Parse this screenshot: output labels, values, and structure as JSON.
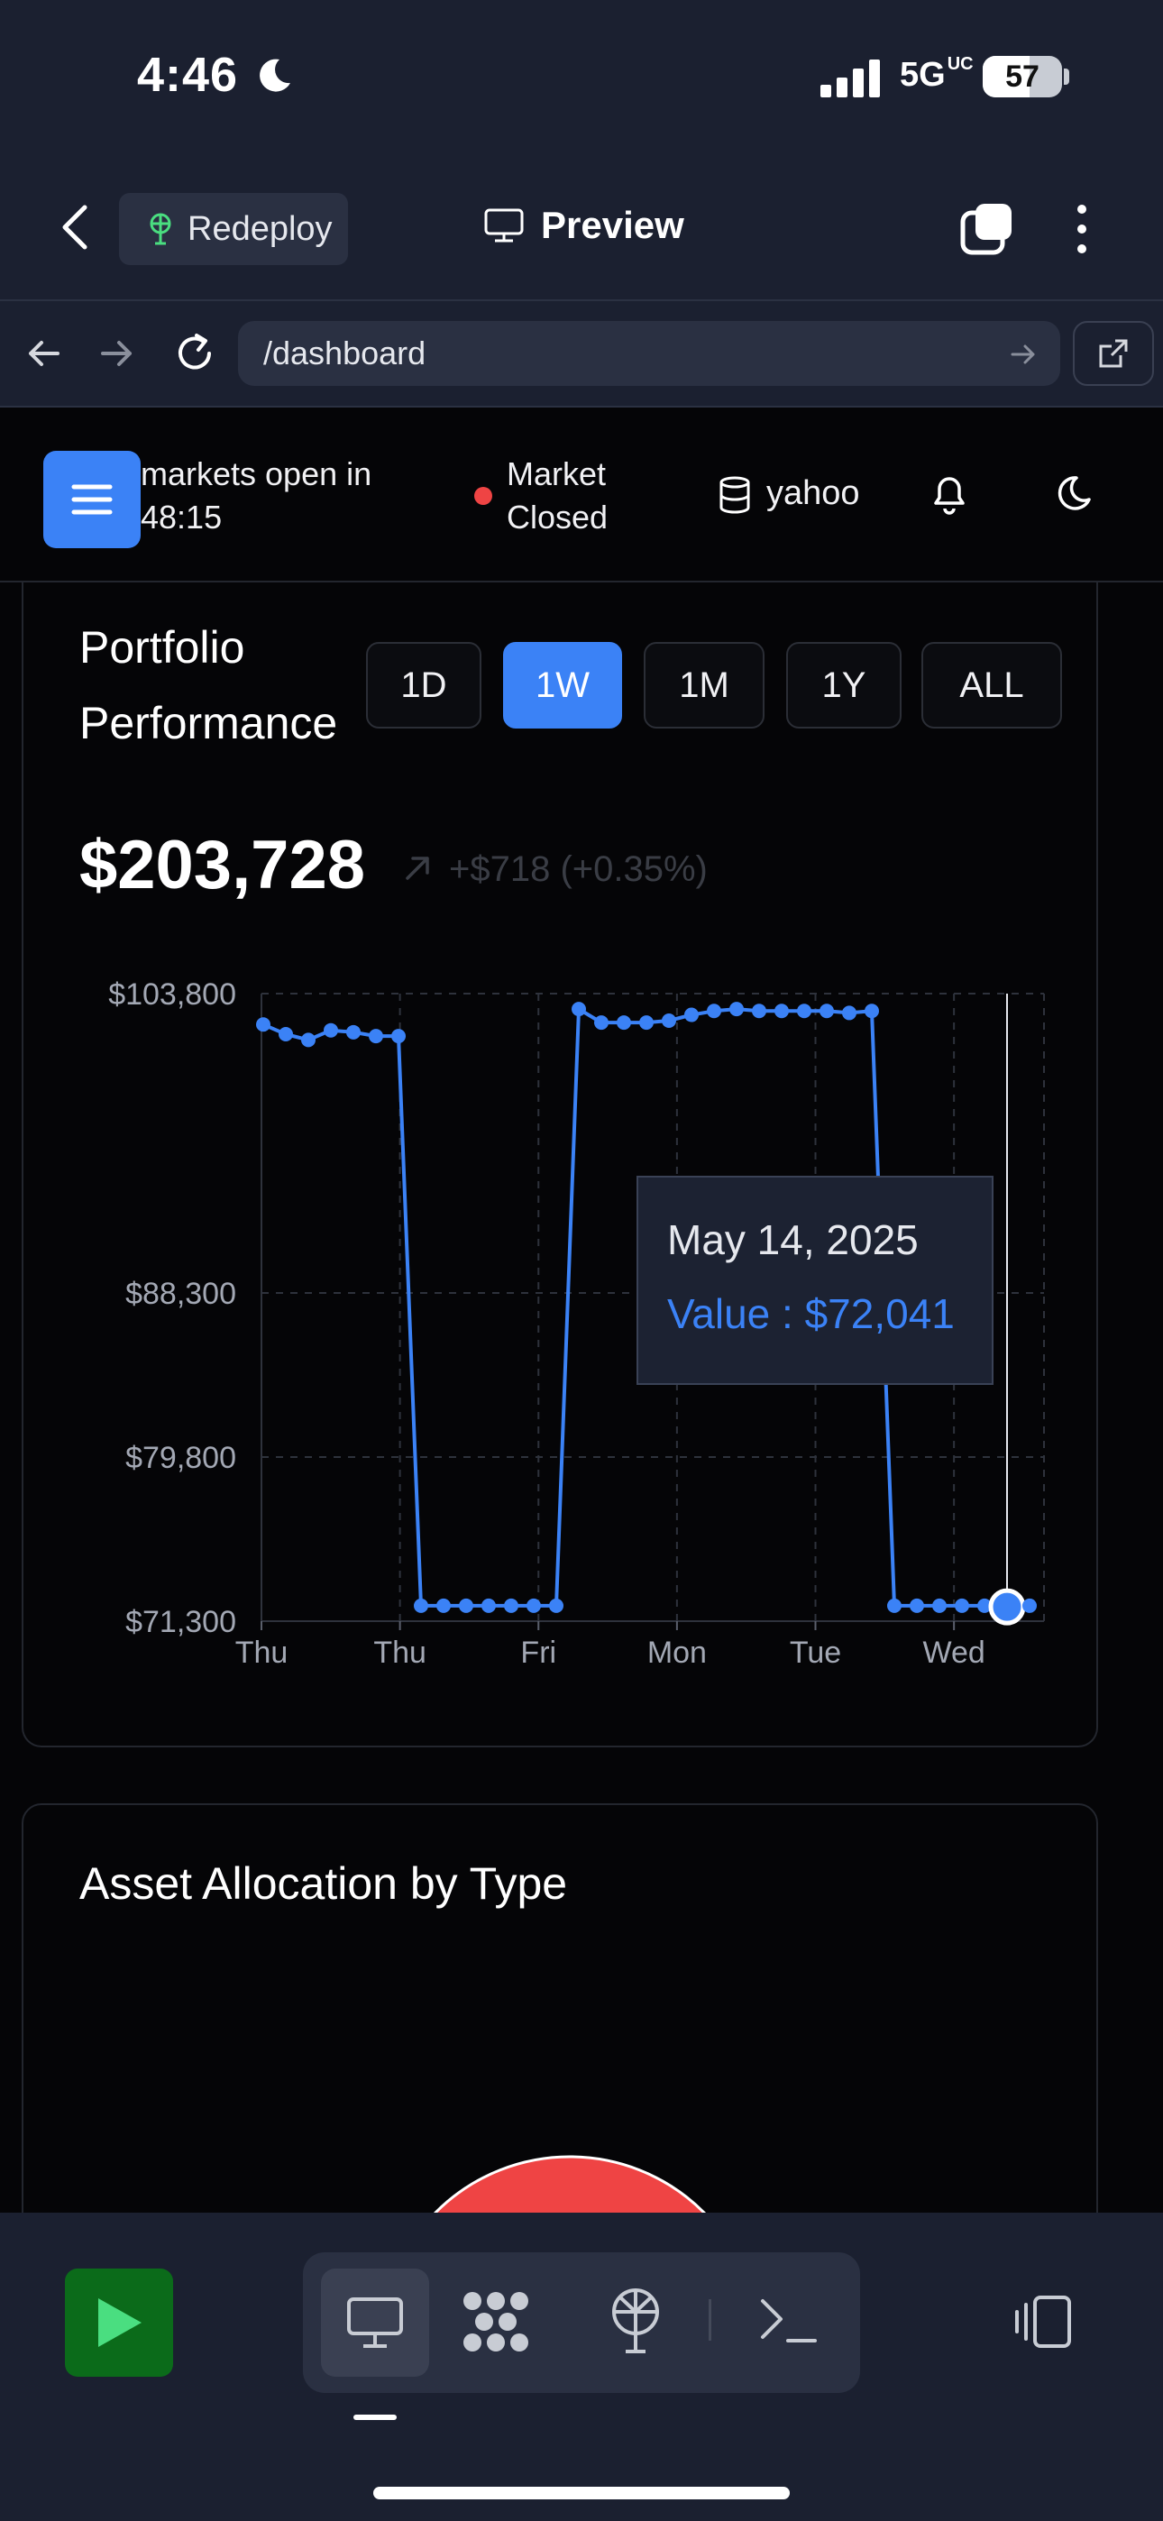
{
  "status_bar": {
    "time": "4:46",
    "network": "5G",
    "network_suffix": "UC",
    "battery": "57"
  },
  "app_header": {
    "redeploy_label": "Redeploy",
    "title": "Preview"
  },
  "browser": {
    "url": "/dashboard"
  },
  "dashboard_header": {
    "countdown": "markets open in 48:15",
    "market_status": "Market Closed",
    "status_color": "#ef4444",
    "data_source": "yahoo"
  },
  "portfolio": {
    "title": "Portfolio Performance",
    "ranges": [
      "1D",
      "1W",
      "1M",
      "1Y",
      "ALL"
    ],
    "active_range": "1W",
    "total_value": "$203,728",
    "change": "+$718 (+0.35%)",
    "tooltip": {
      "date": "May 14, 2025",
      "value": "Value : $72,041"
    }
  },
  "chart_data": {
    "type": "line",
    "ylim": [
      71300,
      103800
    ],
    "y_ticks": [
      "$103,800",
      "$88,300",
      "$79,800",
      "$71,300"
    ],
    "y_tick_values": [
      103800,
      88300,
      79800,
      71300
    ],
    "x_ticks": [
      "Thu",
      "Thu",
      "Fri",
      "Mon",
      "Tue",
      "Wed"
    ],
    "color": "#3b82f6",
    "series": [
      {
        "values": [
          102200,
          101700,
          101400,
          101900,
          101800,
          101600,
          101600,
          72100,
          72100,
          72100,
          72100,
          72100,
          72100,
          72100,
          103000,
          102300,
          102300,
          102300,
          102400,
          102700,
          102900,
          103000,
          102900,
          102900,
          102900,
          102900,
          102800,
          102900,
          72100,
          72100,
          72100,
          72100,
          72100,
          72041,
          72100
        ]
      }
    ],
    "highlight_index": 33
  },
  "assets": {
    "title": "Asset Allocation by Type"
  }
}
